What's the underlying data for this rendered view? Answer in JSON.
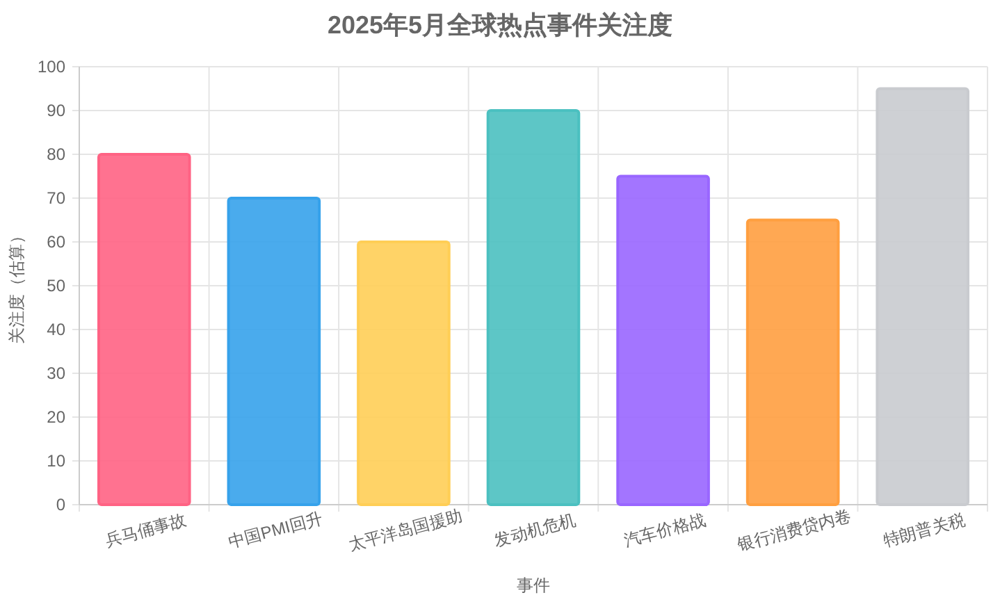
{
  "chart_data": {
    "type": "bar",
    "title": "2025年5月全球热点事件关注度",
    "xlabel": "事件",
    "ylabel": "关注度（估算）",
    "categories": [
      "兵马俑事故",
      "中国PMI回升",
      "太平洋岛国援助",
      "发动机危机",
      "汽车价格战",
      "银行消费贷内卷",
      "特朗普关税"
    ],
    "values": [
      80,
      70,
      60,
      90,
      75,
      65,
      95
    ],
    "colors": [
      "#ff6384",
      "#36a2eb",
      "#ffce56",
      "#4bc0c0",
      "#9966ff",
      "#ff9f40",
      "#c9cbcf"
    ],
    "ylim": [
      0,
      100
    ],
    "yticks": [
      0,
      10,
      20,
      30,
      40,
      50,
      60,
      70,
      80,
      90,
      100
    ],
    "grid": true
  }
}
